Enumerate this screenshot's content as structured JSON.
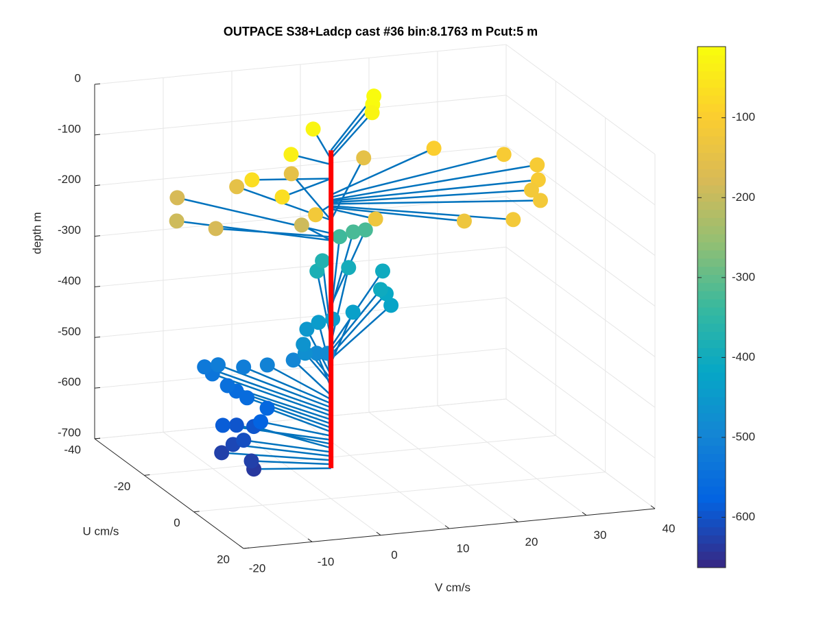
{
  "chart_data": {
    "type": "scatter3",
    "title": "OUTPACE S38+Ladcp cast #36 bin:8.1763 m  Pcut:5 m",
    "xlabel": "V cm/s",
    "ylabel": "U cm/s",
    "zlabel": "depth m",
    "u": [
      -3.2,
      -5.3,
      -8.7,
      -10.2,
      -9.8,
      -14.0,
      -13.5,
      -12.1,
      -10.1,
      -14.4,
      -18.4,
      -20.2,
      -21.3,
      -25.7,
      -27.5,
      -25.9,
      -21.7,
      -19.6,
      -18.8,
      -18.5,
      -17.1,
      -15.7,
      -18.1,
      -23.3,
      -24.1,
      -23.1,
      -23.5,
      -23.1,
      -27.0,
      -27.3,
      -34.2,
      -35.5,
      -33.3,
      -36.1,
      -36.9,
      -36.1,
      -34.8,
      -9.4,
      -16.6,
      -24.4,
      -8.8,
      4.0,
      6.6,
      -3.1,
      -20.6,
      -24.3,
      -6.7,
      -15.5,
      -28.6,
      -24.2,
      -22.2,
      -20.2,
      -17.7,
      -12.7,
      -7.3,
      -0.5,
      3.4,
      8.1,
      15.1,
      12.8,
      6.9
    ],
    "v": [
      -10.1,
      -9.7,
      -12.8,
      -10.6,
      -9.2,
      -6.2,
      -8.9,
      -11.4,
      -6.6,
      -4.1,
      -5.6,
      -6.5,
      -7.4,
      -8.0,
      -8.5,
      -7.1,
      -4.9,
      -2.2,
      1.3,
      6.2,
      4.1,
      1.9,
      2.5,
      4.9,
      6.9,
      8.6,
      11.7,
      17.1,
      17.8,
      17.1,
      19.9,
      15.4,
      10.0,
      11.8,
      14.6,
      16.3,
      17.6,
      -13.4,
      -16.5,
      -13.6,
      -1.1,
      -3.7,
      -9.5,
      -10.4,
      -6.3,
      3.0,
      -3.4,
      3.0,
      15.1,
      15.0,
      14.1,
      13.3,
      21.4,
      29.8,
      32.7,
      30.4,
      28.0,
      27.6,
      21.1,
      14.8,
      4.0
    ],
    "depth": [
      -640,
      -632,
      -624,
      -616,
      -608,
      -600,
      -592,
      -584,
      -576,
      -568,
      -560,
      -552,
      -544,
      -536,
      -528,
      -520,
      -512,
      -504,
      -496,
      -488,
      -480,
      -472,
      -464,
      -456,
      -448,
      -440,
      -432,
      -424,
      -416,
      -408,
      -400,
      -392,
      -384,
      -376,
      -335,
      -325,
      -318,
      -183,
      -190,
      -176,
      -190,
      -120,
      -68,
      -68,
      -150,
      -150,
      -40,
      -30,
      -150,
      -12,
      -20,
      -28,
      -100,
      -105,
      -110,
      -112,
      -115,
      -118,
      -122,
      -125,
      -128
    ],
    "line_depth": [
      -12,
      -640
    ],
    "line_color": "#ff0000",
    "stem_color": "#0072bd",
    "colormap": "parula",
    "ulim": [
      -40,
      20
    ],
    "uticks": [
      -40,
      -20,
      0,
      20
    ],
    "vlim": [
      -20,
      40
    ],
    "vticks": [
      -20,
      -10,
      0,
      10,
      20,
      30,
      40
    ],
    "zlim": [
      -700,
      0
    ],
    "zticks": [
      -700,
      -600,
      -500,
      -400,
      -300,
      -200,
      -100,
      0
    ],
    "clim": [
      -663,
      -11
    ],
    "cticks": [
      -600,
      -500,
      -400,
      -300,
      -200,
      -100
    ],
    "grid": true
  }
}
